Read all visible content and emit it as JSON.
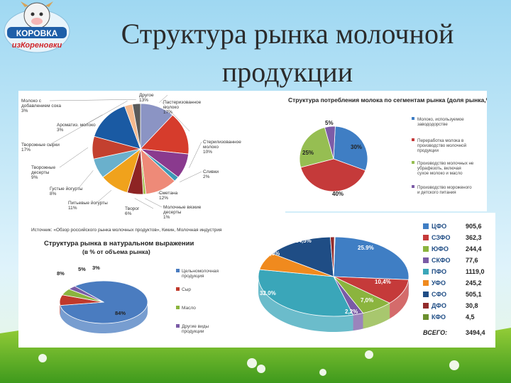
{
  "slide": {
    "title_line1": "Структура рынка молочной",
    "title_line2": "продукции",
    "logo_text_top": "КОРОВКА",
    "logo_text_bottom": "изКореновки"
  },
  "chart_data": [
    {
      "type": "pie",
      "id": "segments",
      "source_note": "Источник: «Обзор российского рынка молочных продуктов», Кикин, Молочная индустрия",
      "slices": [
        {
          "label": "Другое",
          "pct": "13%",
          "value": 13,
          "color": "#8b94c4"
        },
        {
          "label": "Пастеризованное молоко",
          "pct": "17%",
          "value": 17,
          "color": "#d63c2c"
        },
        {
          "label": "Стерилизованное молоко",
          "pct": "10%",
          "value": 10,
          "color": "#8a3a8e"
        },
        {
          "label": "Сливки",
          "pct": "2%",
          "value": 2,
          "color": "#3d9ab7"
        },
        {
          "label": "Сметана",
          "pct": "12%",
          "value": 12,
          "color": "#ee8a78"
        },
        {
          "label": "Молочные вязкие десерты",
          "pct": "1%",
          "value": 1,
          "color": "#a3c14f"
        },
        {
          "label": "Творог",
          "pct": "6%",
          "value": 6,
          "color": "#8e2424"
        },
        {
          "label": "Питьевые йогурты",
          "pct": "11%",
          "value": 11,
          "color": "#f0a21c"
        },
        {
          "label": "Густые йогурты",
          "pct": "8%",
          "value": 8,
          "color": "#6ab0cc"
        },
        {
          "label": "Творожные десерты",
          "pct": "9%",
          "value": 9,
          "color": "#c3402f"
        },
        {
          "label": "Творожные сырки",
          "pct": "17%",
          "value": 17,
          "color": "#1a5aa3"
        },
        {
          "label": "Ароматиз. молоко",
          "pct": "3%",
          "value": 3,
          "color": "#f4b98e"
        },
        {
          "label": "Молоко с добавлением сока",
          "pct": "3%",
          "value": 3,
          "color": "#5a5a5a"
        }
      ]
    },
    {
      "type": "pie",
      "id": "consumption",
      "title": "Структура потребления молока по сегментам рынка (доля рынка,%)",
      "slices": [
        {
          "label": "Молоко, используемое завододорстве",
          "pct": "30%",
          "value": 30,
          "color": "#3f7ec4"
        },
        {
          "label": "Переработка молока в производство молочной продукции",
          "pct": "40%",
          "value": 40,
          "color": "#c53a3a"
        },
        {
          "label": "Производство молочных не убрафезоть, включая сухое молоко и масло",
          "pct": "25%",
          "value": 25,
          "color": "#96be52"
        },
        {
          "label": "Производство мороженого и детского питания",
          "pct": "5%",
          "value": 5,
          "color": "#7d5ca7"
        }
      ]
    },
    {
      "type": "pie",
      "id": "natural",
      "title": "Структура рынка в натуральном выражении",
      "subtitle": "(в % от объема рынка)",
      "slices": [
        {
          "label": "Цельномолочная продукция",
          "pct": "84%",
          "value": 84,
          "color": "#4a7cc0"
        },
        {
          "label": "Сыр",
          "pct": "8%",
          "value": 8,
          "color": "#c0392b"
        },
        {
          "label": "Масло",
          "pct": "5%",
          "value": 5,
          "color": "#8bb43e"
        },
        {
          "label": "Другие виды продукции",
          "pct": "3%",
          "value": 3,
          "color": "#7a5ba6"
        }
      ]
    },
    {
      "type": "pie",
      "id": "districts",
      "slices": [
        {
          "label": "ЦФО",
          "pct": "25.9%",
          "value": 905.6,
          "color": "#3f7ec4"
        },
        {
          "label": "СЗФО",
          "pct": "10,4%",
          "value": 362.3,
          "color": "#c53a3a"
        },
        {
          "label": "ЮФО",
          "pct": "7,0%",
          "value": 244.4,
          "color": "#8bb43e"
        },
        {
          "label": "СКФО",
          "pct": "2,2%",
          "value": 77.6,
          "color": "#7a5ba6"
        },
        {
          "label": "ПФО",
          "pct": "32.0%",
          "value": 1119.0,
          "color": "#3aa6b9"
        },
        {
          "label": "УФО",
          "pct": "7,0%",
          "value": 245.2,
          "color": "#f08a1e"
        },
        {
          "label": "СФО",
          "pct": "14,5%",
          "value": 505.1,
          "color": "#1f4d85"
        },
        {
          "label": "ДФО",
          "pct": "1%",
          "value": 30.8,
          "color": "#922b2b"
        },
        {
          "label": "КФО",
          "pct": "",
          "value": 4.5,
          "color": "#6b8f2e"
        }
      ],
      "legend_values": [
        "905,6",
        "362,3",
        "244,4",
        "77,6",
        "1119,0",
        "245,2",
        "505,1",
        "30,8",
        "4,5"
      ],
      "total_label": "ВСЕГО:",
      "total_value": "3494,4"
    }
  ]
}
